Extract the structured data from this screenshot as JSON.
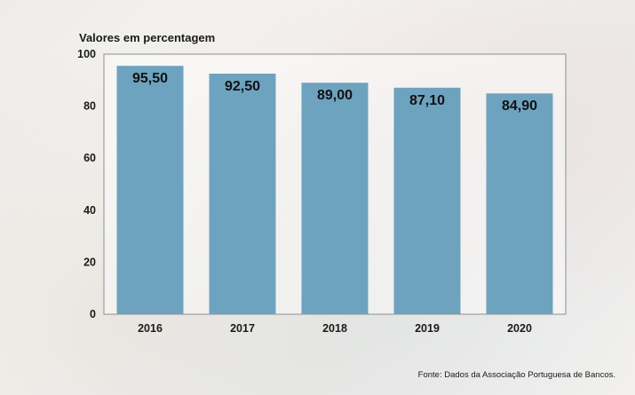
{
  "chart_data": {
    "type": "bar",
    "title": "",
    "subtitle": "Valores em percentagem",
    "xlabel": "",
    "ylabel": "",
    "categories": [
      "2016",
      "2017",
      "2018",
      "2019",
      "2020"
    ],
    "values": [
      95.5,
      92.5,
      89.0,
      87.1,
      84.9
    ],
    "value_labels": [
      "95,50",
      "92,50",
      "89,00",
      "87,10",
      "84,90"
    ],
    "ylim": [
      0,
      100
    ],
    "yticks": [
      0,
      20,
      40,
      60,
      80,
      100
    ],
    "bar_color": "#6ea3bf",
    "grid": false,
    "source": "Fonte: Dados da Associação Portuguesa de Bancos."
  }
}
